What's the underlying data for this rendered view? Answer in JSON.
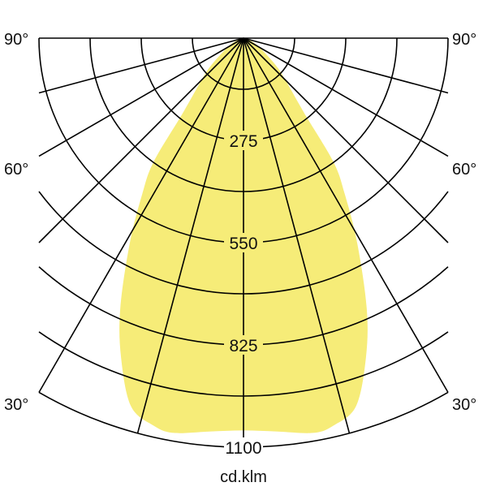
{
  "chart_data": {
    "type": "polar",
    "unit_label": "cd.klm",
    "radial_ticks": [
      "275",
      "550",
      "825",
      "1100"
    ],
    "radial_max": 1100,
    "radial_grid_step": 137.5,
    "angle_grid_step_deg": 15,
    "angle_labels": {
      "left": [
        "90°",
        "60°",
        "30°"
      ],
      "right": [
        "90°",
        "60°",
        "30°"
      ]
    },
    "fill_color": "#f6ec78",
    "grid_color": "#000000",
    "series": [
      {
        "symmetric": true,
        "angles_deg": [
          0,
          5,
          10,
          13,
          17,
          21,
          24.5,
          29,
          33,
          36,
          39,
          45,
          50,
          60,
          70,
          90
        ],
        "values": [
          1055,
          1062,
          1078,
          1070,
          1035,
          919,
          799,
          631,
          500,
          411,
          260,
          160,
          113,
          50,
          20,
          0
        ]
      }
    ]
  }
}
